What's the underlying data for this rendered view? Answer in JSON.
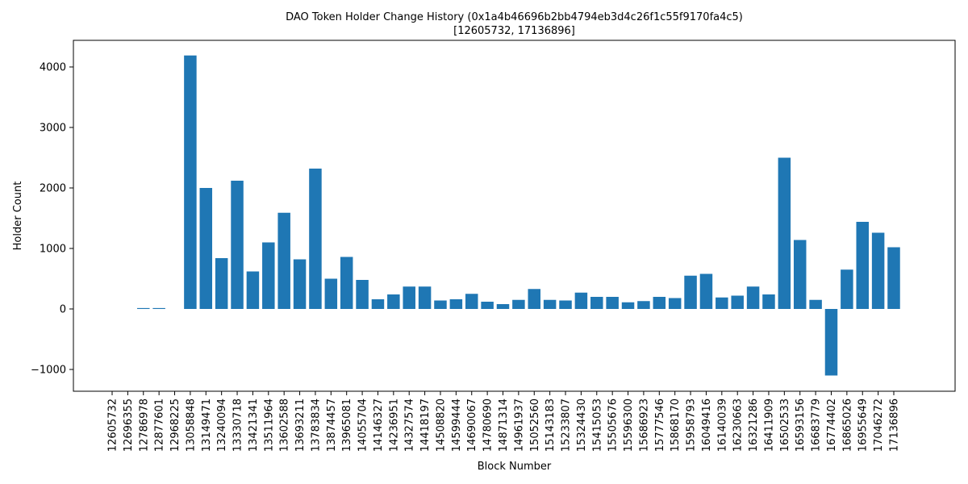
{
  "chart_data": {
    "type": "bar",
    "title": "DAO Token Holder Change History (0x1a4b46696b2bb4794eb3d4c26f1c55f9170fa4c5)",
    "subtitle": "[12605732, 17136896]",
    "xlabel": "Block Number",
    "ylabel": "Holder Count",
    "ylim": [
      -1360,
      4440
    ],
    "yticks": [
      -1000,
      0,
      1000,
      2000,
      3000,
      4000
    ],
    "ytick_labels": [
      "−1000",
      "0",
      "1000",
      "2000",
      "3000",
      "4000"
    ],
    "grid": false,
    "bar_color": "#1f77b4",
    "categories": [
      "12605732",
      "12696355",
      "12786978",
      "12877601",
      "12968225",
      "13058848",
      "13149471",
      "13240094",
      "13330718",
      "13421341",
      "13511964",
      "13602588",
      "13693211",
      "13783834",
      "13874457",
      "13965081",
      "14055704",
      "14146327",
      "14236951",
      "14327574",
      "14418197",
      "14508820",
      "14599444",
      "14690067",
      "14780690",
      "14871314",
      "14961937",
      "15052560",
      "15143183",
      "15233807",
      "15324430",
      "15415053",
      "15505676",
      "15596300",
      "15686923",
      "15777546",
      "15868170",
      "15958793",
      "16049416",
      "16140039",
      "16230663",
      "16321286",
      "16411909",
      "16502533",
      "16593156",
      "16683779",
      "16774402",
      "16865026",
      "16955649",
      "17046272",
      "17136896"
    ],
    "values": [
      0,
      0,
      15,
      15,
      0,
      4190,
      2000,
      840,
      2120,
      620,
      1100,
      1590,
      820,
      2320,
      500,
      860,
      480,
      160,
      240,
      370,
      370,
      140,
      160,
      250,
      120,
      80,
      150,
      330,
      150,
      140,
      270,
      200,
      200,
      110,
      130,
      200,
      180,
      550,
      580,
      190,
      220,
      370,
      240,
      2500,
      1140,
      150,
      -1100,
      650,
      1440,
      1260,
      1020
    ]
  }
}
